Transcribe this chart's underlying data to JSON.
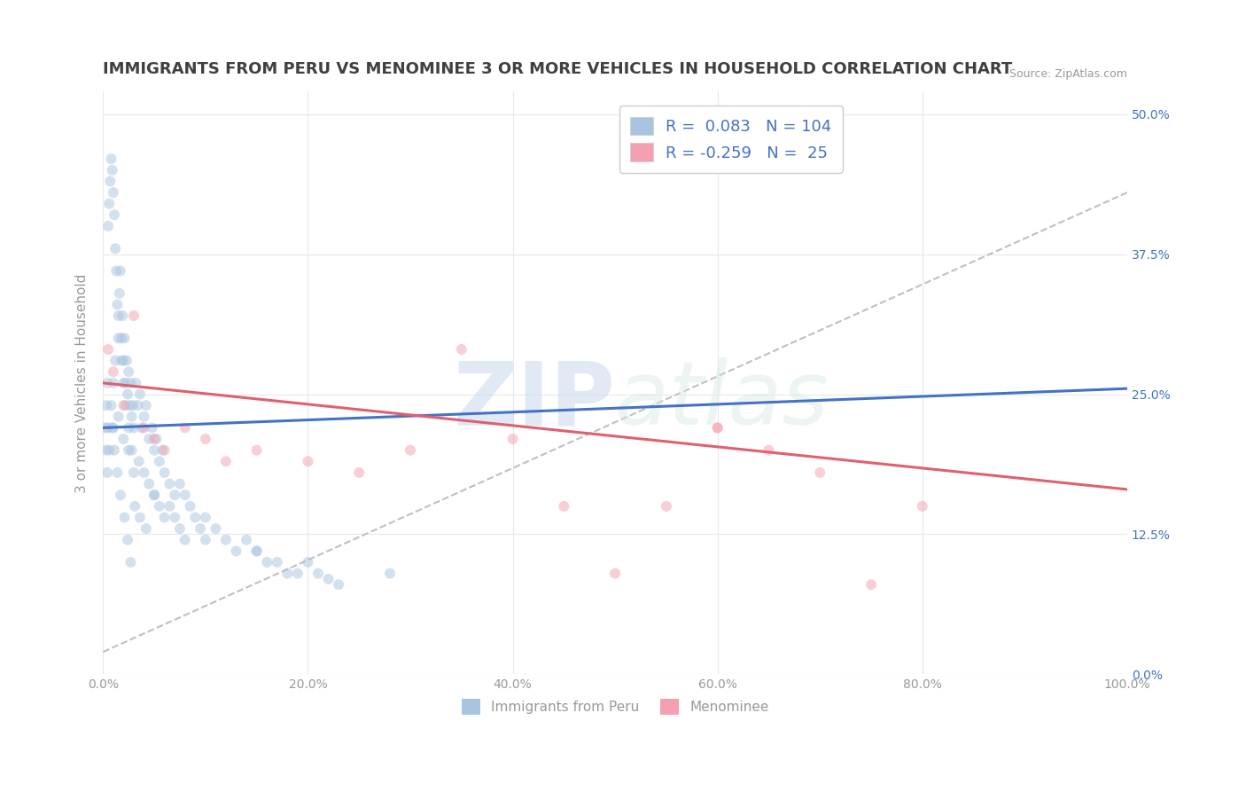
{
  "title": "IMMIGRANTS FROM PERU VS MENOMINEE 3 OR MORE VEHICLES IN HOUSEHOLD CORRELATION CHART",
  "source_text": "Source: ZipAtlas.com",
  "ylabel": "3 or more Vehicles in Household",
  "xlim": [
    0.0,
    100.0
  ],
  "ylim": [
    0.0,
    52.0
  ],
  "yticks": [
    0.0,
    12.5,
    25.0,
    37.5,
    50.0
  ],
  "xticks": [
    0.0,
    20.0,
    40.0,
    60.0,
    80.0,
    100.0
  ],
  "blue_R": 0.083,
  "blue_N": 104,
  "pink_R": -0.259,
  "pink_N": 25,
  "blue_color": "#a8c4e0",
  "pink_color": "#f4a0b0",
  "blue_line_color": "#4472c4",
  "pink_line_color": "#e06070",
  "trend_line_color": "#c0c0c0",
  "background_color": "#ffffff",
  "grid_color": "#e8e8e8",
  "title_color": "#404040",
  "legend_text_color": "#4472c4",
  "blue_scatter_x": [
    0.2,
    0.3,
    0.4,
    0.5,
    0.6,
    0.7,
    0.8,
    0.9,
    1.0,
    1.1,
    1.2,
    1.3,
    1.4,
    1.5,
    1.6,
    1.7,
    1.8,
    1.9,
    2.0,
    2.1,
    2.2,
    2.3,
    2.4,
    2.5,
    2.6,
    2.7,
    2.8,
    2.9,
    3.0,
    3.2,
    3.4,
    3.6,
    3.8,
    4.0,
    4.2,
    4.5,
    4.8,
    5.0,
    5.2,
    5.5,
    5.8,
    6.0,
    6.5,
    7.0,
    7.5,
    8.0,
    8.5,
    9.0,
    9.5,
    10.0,
    11.0,
    12.0,
    13.0,
    14.0,
    15.0,
    16.0,
    17.0,
    18.0,
    19.0,
    20.0,
    21.0,
    22.0,
    23.0,
    0.3,
    0.5,
    0.8,
    1.0,
    1.2,
    1.5,
    1.8,
    2.0,
    2.2,
    2.5,
    2.8,
    3.0,
    3.5,
    4.0,
    4.5,
    5.0,
    5.5,
    6.0,
    6.5,
    7.0,
    7.5,
    8.0,
    0.4,
    0.6,
    0.9,
    1.1,
    1.4,
    1.7,
    2.1,
    2.4,
    2.7,
    3.1,
    3.6,
    4.2,
    1.0,
    1.5,
    2.0,
    2.5,
    5.0,
    10.0,
    15.0,
    28.0
  ],
  "blue_scatter_y": [
    22.0,
    24.0,
    26.0,
    40.0,
    42.0,
    44.0,
    46.0,
    45.0,
    43.0,
    41.0,
    38.0,
    36.0,
    33.0,
    32.0,
    34.0,
    36.0,
    30.0,
    32.0,
    28.0,
    30.0,
    26.0,
    28.0,
    25.0,
    27.0,
    24.0,
    26.0,
    23.0,
    24.0,
    22.0,
    26.0,
    24.0,
    25.0,
    22.0,
    23.0,
    24.0,
    21.0,
    22.0,
    20.0,
    21.0,
    19.0,
    20.0,
    18.0,
    17.0,
    16.0,
    17.0,
    16.0,
    15.0,
    14.0,
    13.0,
    14.0,
    13.0,
    12.0,
    11.0,
    12.0,
    11.0,
    10.0,
    10.0,
    9.0,
    9.0,
    10.0,
    9.0,
    8.5,
    8.0,
    20.0,
    22.0,
    24.0,
    26.0,
    28.0,
    30.0,
    28.0,
    26.0,
    24.0,
    22.0,
    20.0,
    18.0,
    19.0,
    18.0,
    17.0,
    16.0,
    15.0,
    14.0,
    15.0,
    14.0,
    13.0,
    12.0,
    18.0,
    20.0,
    22.0,
    20.0,
    18.0,
    16.0,
    14.0,
    12.0,
    10.0,
    15.0,
    14.0,
    13.0,
    22.0,
    23.0,
    21.0,
    20.0,
    16.0,
    12.0,
    11.0,
    9.0
  ],
  "pink_scatter_x": [
    0.5,
    1.0,
    2.0,
    3.0,
    4.0,
    5.0,
    6.0,
    8.0,
    10.0,
    12.0,
    15.0,
    20.0,
    25.0,
    30.0,
    35.0,
    40.0,
    45.0,
    50.0,
    55.0,
    60.0,
    65.0,
    70.0,
    75.0,
    80.0,
    60.0
  ],
  "pink_scatter_y": [
    29.0,
    27.0,
    24.0,
    32.0,
    22.0,
    21.0,
    20.0,
    22.0,
    21.0,
    19.0,
    20.0,
    19.0,
    18.0,
    20.0,
    29.0,
    21.0,
    15.0,
    9.0,
    15.0,
    22.0,
    20.0,
    18.0,
    8.0,
    15.0,
    22.0
  ],
  "blue_trend_x": [
    0.0,
    100.0
  ],
  "blue_trend_y": [
    22.0,
    25.5
  ],
  "pink_trend_x": [
    0.0,
    100.0
  ],
  "pink_trend_y": [
    26.0,
    16.5
  ],
  "gray_trend_x": [
    0.0,
    100.0
  ],
  "gray_trend_y": [
    2.0,
    43.0
  ],
  "title_fontsize": 13,
  "axis_label_fontsize": 11,
  "tick_fontsize": 10,
  "dot_size": 75,
  "dot_alpha": 0.5,
  "watermark_color": "#ccddf0"
}
